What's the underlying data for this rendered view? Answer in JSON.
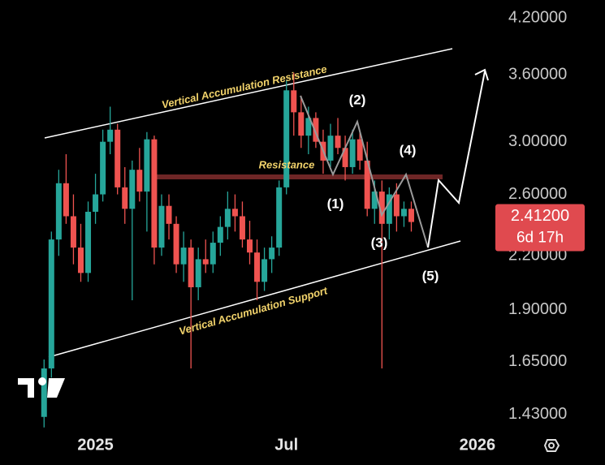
{
  "chart_data": {
    "type": "candlestick",
    "log_scale": true,
    "up_color": "#26a69a",
    "down_color": "#ef5350",
    "candles": {
      "open": [
        1.42,
        1.62,
        2.3,
        2.68,
        2.45,
        2.25,
        2.1,
        2.48,
        2.6,
        3.0,
        3.1,
        2.65,
        2.5,
        2.78,
        2.62,
        3.02,
        2.25,
        2.52,
        2.4,
        2.15,
        2.25,
        2.02,
        2.18,
        2.15,
        2.28,
        2.38,
        2.5,
        2.45,
        2.3,
        2.22,
        2.05,
        2.18,
        2.25,
        2.65,
        3.45,
        3.25,
        3.05,
        3.2,
        3.0,
        2.85,
        3.05,
        2.95,
        2.8,
        3.02,
        2.85,
        2.5,
        2.62,
        2.4,
        2.6,
        2.45,
        2.5
      ],
      "high": [
        1.66,
        2.35,
        2.78,
        2.9,
        2.6,
        2.4,
        2.55,
        2.75,
        3.1,
        3.3,
        3.15,
        2.8,
        2.85,
        2.95,
        3.08,
        3.05,
        2.6,
        2.6,
        2.45,
        2.35,
        2.3,
        2.25,
        2.3,
        2.35,
        2.45,
        2.62,
        2.6,
        2.55,
        2.42,
        2.3,
        2.25,
        2.32,
        2.7,
        3.55,
        3.62,
        3.4,
        3.3,
        3.25,
        3.1,
        3.15,
        3.2,
        3.05,
        3.1,
        3.08,
        3.0,
        2.7,
        2.7,
        2.65,
        2.68,
        2.55,
        2.55
      ],
      "low": [
        1.38,
        1.58,
        2.2,
        2.4,
        2.15,
        2.05,
        2.05,
        2.4,
        2.55,
        2.9,
        2.6,
        2.4,
        1.95,
        2.55,
        2.35,
        2.15,
        2.2,
        2.3,
        2.1,
        2.05,
        1.62,
        1.95,
        2.1,
        2.1,
        2.2,
        2.3,
        2.35,
        2.25,
        2.15,
        1.95,
        2.0,
        2.1,
        2.2,
        2.6,
        3.05,
        2.95,
        2.9,
        2.95,
        2.75,
        2.8,
        2.9,
        2.7,
        2.75,
        2.78,
        2.45,
        2.4,
        1.62,
        2.3,
        2.35,
        2.38,
        2.35
      ],
      "close": [
        1.62,
        2.3,
        2.68,
        2.45,
        2.25,
        2.1,
        2.48,
        2.6,
        3.0,
        3.1,
        2.65,
        2.5,
        2.78,
        2.62,
        3.02,
        2.25,
        2.52,
        2.4,
        2.15,
        2.25,
        2.02,
        2.18,
        2.15,
        2.28,
        2.38,
        2.5,
        2.45,
        2.3,
        2.22,
        2.05,
        2.18,
        2.25,
        2.65,
        3.45,
        3.25,
        3.05,
        3.2,
        3.0,
        2.85,
        3.05,
        2.95,
        2.8,
        3.02,
        2.85,
        2.5,
        2.62,
        2.4,
        2.6,
        2.45,
        2.5,
        2.412
      ]
    },
    "ylim": [
      1.37,
      4.41
    ],
    "yticks": [
      {
        "value": 1.43,
        "label": "1.43000"
      },
      {
        "value": 1.65,
        "label": "1.65000"
      },
      {
        "value": 1.9,
        "label": "1.90000"
      },
      {
        "value": 2.2,
        "label": "2.20000"
      },
      {
        "value": 2.6,
        "label": "2.60000"
      },
      {
        "value": 3.0,
        "label": "3.00000"
      },
      {
        "value": 3.6,
        "label": "3.60000"
      },
      {
        "value": 4.2,
        "label": "4.20000"
      }
    ],
    "xlim": [
      -6,
      62
    ],
    "xticks": [
      {
        "value": 7,
        "label": "2025"
      },
      {
        "value": 33,
        "label": "Jul"
      },
      {
        "value": 59,
        "label": "2026"
      }
    ],
    "last_price": {
      "value": 2.412,
      "label": "2.41200"
    },
    "countdown": "6d 17h",
    "annotations": [
      "Vertical Accumulation Resistance",
      "Resistance",
      "Vertical Accumulation Support",
      "(1)",
      "(2)",
      "(3)",
      "(4)",
      "(5)"
    ]
  }
}
